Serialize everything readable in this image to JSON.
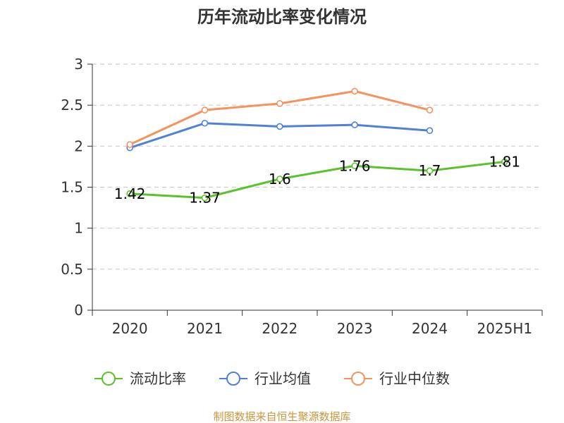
{
  "chart_data": {
    "type": "line",
    "title": "历年流动比率变化情况",
    "categories": [
      "2020",
      "2021",
      "2022",
      "2023",
      "2024",
      "2025H1"
    ],
    "ylim": [
      0,
      3
    ],
    "yticks": [
      0,
      0.5,
      1,
      1.5,
      2,
      2.5,
      3
    ],
    "grid": true,
    "legend_position": "bottom-center",
    "series": [
      {
        "name": "流动比率",
        "color": "#5cc22c",
        "values": [
          1.42,
          1.37,
          1.6,
          1.76,
          1.7,
          1.81
        ],
        "labels": [
          "1.42",
          "1.37",
          "1.6",
          "1.76",
          "1.7",
          "1.81"
        ]
      },
      {
        "name": "行业均值",
        "color": "#4f81d9",
        "values": [
          1.98,
          2.28,
          2.24,
          2.26,
          2.19,
          null
        ]
      },
      {
        "name": "行业中位数",
        "color": "#f5935e",
        "values": [
          2.02,
          2.44,
          2.52,
          2.67,
          2.44,
          null
        ]
      }
    ]
  },
  "source": {
    "text": "制图数据来自恒生聚源数据库",
    "color": "#c8963c"
  }
}
